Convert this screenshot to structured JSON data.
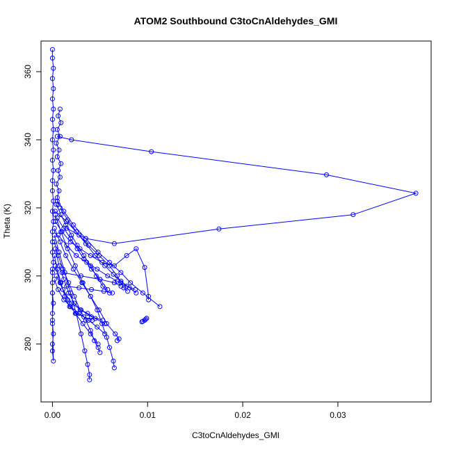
{
  "chart_data": {
    "type": "line",
    "title": "ATOM2 Southbound C3toCnAldehydes_GMI",
    "xlabel": "C3toCnAldehydes_GMI",
    "ylabel": "Theta (K)",
    "xlim": [
      -0.0012,
      0.0398
    ],
    "ylim": [
      263,
      369
    ],
    "xticks": [
      0.0,
      0.01,
      0.02,
      0.03
    ],
    "xtick_labels": [
      "0.00",
      "0.01",
      "0.02",
      "0.03"
    ],
    "yticks": [
      280,
      300,
      320,
      340,
      360
    ],
    "ytick_labels": [
      "280",
      "300",
      "320",
      "340",
      "360"
    ],
    "grid": false,
    "legend": "none",
    "color": "#0000ff",
    "series": [
      {
        "x": [
          0.0,
          0.0,
          0.0001,
          0.0,
          0.0001,
          0.0,
          0.0001,
          0.0,
          0.0001,
          0.0,
          0.0001,
          0.0,
          0.0001,
          0.0,
          0.0,
          0.0001,
          0.0,
          0.0001,
          0.0,
          0.0,
          0.0,
          0.0001,
          0.0,
          0.0,
          0.0,
          0.0001,
          0.0,
          0.0,
          0.0001,
          0.0,
          0.0,
          0.0001,
          0.0,
          0.0,
          0.0
        ],
        "y": [
          366.5,
          364,
          361,
          358,
          355,
          352,
          349,
          346,
          343,
          340,
          337,
          334,
          331,
          328,
          325,
          322,
          319,
          316,
          313,
          310,
          307,
          304,
          301,
          298,
          295,
          292,
          289,
          286,
          283,
          280,
          278,
          275,
          287,
          295,
          302
        ]
      },
      {
        "x": [
          0.0008,
          0.0006,
          0.0009,
          0.0005,
          0.0008,
          0.0004,
          0.0007,
          0.0005,
          0.0009,
          0.0006,
          0.0008,
          0.0004,
          0.0007,
          0.0005,
          0.0006
        ],
        "y": [
          349,
          347,
          345,
          343,
          341,
          339,
          337,
          335,
          333,
          331,
          329,
          327,
          325,
          323,
          321
        ]
      },
      {
        "x": [
          0.0005,
          0.002,
          0.0104,
          0.0288,
          0.0382,
          0.0316,
          0.0175,
          0.0065,
          0.0035,
          0.0015
        ],
        "y": [
          341,
          340,
          336.5,
          329.7,
          324.3,
          318,
          313.8,
          309.5,
          311,
          314
        ]
      },
      {
        "x": [
          0.0005,
          0.0012,
          0.0022,
          0.0035,
          0.0048,
          0.006,
          0.0072,
          0.0082,
          0.0095,
          0.0113
        ],
        "y": [
          322,
          319,
          315,
          311,
          307,
          304,
          301,
          298,
          295,
          291
        ]
      },
      {
        "x": [
          0.0003,
          0.0015,
          0.0028,
          0.0038,
          0.0049,
          0.006,
          0.0068,
          0.0072,
          0.0075,
          0.0079
        ],
        "y": [
          319,
          316,
          312,
          309,
          306,
          303,
          300,
          298,
          296.5,
          295.5
        ]
      },
      {
        "x": [
          0.0003,
          0.001,
          0.0019,
          0.0029,
          0.004,
          0.0052,
          0.0065,
          0.0078,
          0.0088,
          0.0097,
          0.0101,
          0.0101
        ],
        "y": [
          316,
          313,
          310,
          308,
          306,
          304,
          303,
          306,
          308,
          302.5,
          294,
          293
        ]
      },
      {
        "x": [
          0.0002,
          0.0008,
          0.0014,
          0.0022,
          0.0031,
          0.004,
          0.0049,
          0.0057,
          0.0066,
          0.007,
          0.0068
        ],
        "y": [
          314,
          310,
          306,
          302,
          298,
          294,
          290,
          286,
          283,
          281.5,
          281
        ]
      },
      {
        "x": [
          0.0002,
          0.0007,
          0.0013,
          0.0019,
          0.0025,
          0.003,
          0.0034,
          0.0037,
          0.0039,
          0.0039
        ],
        "y": [
          312,
          307,
          301,
          295,
          289,
          283,
          278,
          274,
          271,
          269.5
        ]
      },
      {
        "x": [
          0.0003,
          0.0009,
          0.0016,
          0.0024,
          0.0032,
          0.004,
          0.0047,
          0.0052,
          0.0057,
          0.006,
          0.0064,
          0.0065
        ],
        "y": [
          318,
          313,
          308,
          303,
          298,
          294,
          290,
          286,
          282,
          279,
          275,
          273
        ]
      },
      {
        "x": [
          0.0002,
          0.0006,
          0.0011,
          0.0017,
          0.0023,
          0.0029,
          0.0035,
          0.004,
          0.0044,
          0.0048,
          0.005
        ],
        "y": [
          310,
          306,
          302,
          298,
          294,
          290,
          287,
          284,
          281,
          279,
          277.5
        ]
      },
      {
        "x": [
          0.0003,
          0.0007,
          0.0012,
          0.0017,
          0.0023,
          0.003,
          0.0037,
          0.0045,
          0.0055
        ],
        "y": [
          308,
          303,
          299,
          295,
          292,
          290,
          289,
          287.5,
          286
        ]
      },
      {
        "x": [
          0.0002,
          0.0005,
          0.0009,
          0.0013,
          0.0018,
          0.0025,
          0.0033,
          0.0042
        ],
        "y": [
          306,
          302,
          298,
          294,
          291,
          289,
          288,
          287
        ]
      },
      {
        "x": [
          0.0004,
          0.0009,
          0.0014,
          0.002,
          0.0026,
          0.0033,
          0.004,
          0.0046,
          0.0053,
          0.006
        ],
        "y": [
          321,
          318,
          315,
          312,
          309,
          306,
          303,
          300,
          297,
          295
        ]
      },
      {
        "x": [
          0.0005,
          0.0012,
          0.0019,
          0.0026,
          0.0033,
          0.0041,
          0.005,
          0.0058
        ],
        "y": [
          317,
          314,
          311,
          308,
          305,
          302,
          299,
          296
        ]
      },
      {
        "x": [
          0.0008,
          0.0016,
          0.0025,
          0.0035,
          0.0045,
          0.0055,
          0.0064,
          0.0072,
          0.0081,
          0.0088
        ],
        "y": [
          320,
          316.5,
          313,
          309.5,
          306,
          303,
          300.5,
          298.5,
          296.5,
          295
        ]
      },
      {
        "x": [
          0.0003,
          0.0008,
          0.0016,
          0.0024,
          0.0032,
          0.004,
          0.0048
        ],
        "y": [
          303,
          298,
          293,
          289,
          286,
          283,
          280
        ]
      },
      {
        "x": [
          0.0004,
          0.0011,
          0.002,
          0.003,
          0.0041,
          0.0053
        ],
        "y": [
          300,
          296,
          292,
          290,
          288,
          287
        ]
      },
      {
        "x": [
          0.0002,
          0.0006,
          0.0012,
          0.0019,
          0.0028,
          0.0038,
          0.0047,
          0.0055
        ],
        "y": [
          299,
          296,
          293,
          291,
          289,
          287,
          285,
          283
        ]
      },
      {
        "x": [
          0.0006,
          0.0015,
          0.0025,
          0.0036,
          0.0047,
          0.0058,
          0.0068,
          0.0078,
          0.0087
        ],
        "y": [
          312,
          309,
          306,
          304,
          302,
          300,
          298.5,
          297,
          296
        ]
      },
      {
        "x": [
          0.0094,
          0.0095,
          0.0097,
          0.0098,
          0.0099
        ],
        "y": [
          286.5,
          286.7,
          287,
          287.3,
          287.6
        ]
      },
      {
        "x": [
          0.001,
          0.003,
          0.005,
          0.0065,
          0.0072
        ],
        "y": [
          301,
          300,
          299,
          298,
          297
        ]
      },
      {
        "x": [
          0.0015,
          0.0028,
          0.0041,
          0.0054,
          0.0063
        ],
        "y": [
          297,
          296.5,
          296,
          295.5,
          295
        ]
      }
    ]
  }
}
